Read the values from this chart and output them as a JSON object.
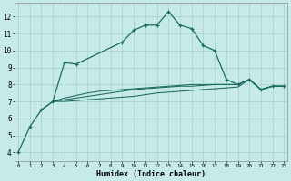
{
  "xlabel": "Humidex (Indice chaleur)",
  "bg_color": "#c5eae7",
  "grid_color": "#add4d0",
  "line_color": "#1a6b5e",
  "main_x": [
    0,
    1,
    2,
    3,
    4,
    5,
    9,
    10,
    11,
    12,
    13,
    14,
    15,
    16,
    17,
    18,
    19,
    20,
    21,
    22,
    23
  ],
  "main_y": [
    4.0,
    5.5,
    6.5,
    7.0,
    9.3,
    9.2,
    10.5,
    11.2,
    11.5,
    11.5,
    12.3,
    11.5,
    11.3,
    10.3,
    10.0,
    8.3,
    8.0,
    8.3,
    7.7,
    7.9,
    7.9
  ],
  "flat1_x": [
    2,
    3,
    4,
    5,
    6,
    7,
    8,
    9,
    10,
    11,
    12,
    13,
    14,
    15,
    16,
    17,
    18,
    19,
    20,
    21,
    22,
    23
  ],
  "flat1_y": [
    6.5,
    7.0,
    7.0,
    7.05,
    7.1,
    7.15,
    7.2,
    7.25,
    7.3,
    7.4,
    7.5,
    7.55,
    7.6,
    7.65,
    7.7,
    7.75,
    7.8,
    7.85,
    8.3,
    7.7,
    7.9,
    7.9
  ],
  "flat2_x": [
    3,
    4,
    5,
    6,
    7,
    8,
    9,
    10,
    11,
    12,
    13,
    14,
    15,
    16,
    17,
    18,
    19,
    20,
    21,
    22,
    23
  ],
  "flat2_y": [
    7.0,
    7.1,
    7.2,
    7.3,
    7.4,
    7.5,
    7.6,
    7.7,
    7.75,
    7.8,
    7.85,
    7.9,
    7.9,
    7.95,
    8.0,
    8.0,
    8.0,
    8.3,
    7.7,
    7.9,
    7.9
  ],
  "flat3_x": [
    3,
    4,
    5,
    6,
    7,
    8,
    9,
    10,
    11,
    12,
    13,
    14,
    15,
    16,
    17,
    18,
    19,
    20,
    21,
    22,
    23
  ],
  "flat3_y": [
    7.0,
    7.2,
    7.35,
    7.5,
    7.6,
    7.65,
    7.7,
    7.75,
    7.8,
    7.85,
    7.9,
    7.95,
    8.0,
    8.0,
    8.0,
    8.0,
    8.0,
    8.3,
    7.7,
    7.9,
    7.9
  ],
  "ylim": [
    3.5,
    12.8
  ],
  "xlim": [
    -0.3,
    23.3
  ],
  "yticks": [
    4,
    5,
    6,
    7,
    8,
    9,
    10,
    11,
    12
  ],
  "xticks": [
    0,
    1,
    2,
    3,
    4,
    5,
    6,
    7,
    8,
    9,
    10,
    11,
    12,
    13,
    14,
    15,
    16,
    17,
    18,
    19,
    20,
    21,
    22,
    23
  ]
}
